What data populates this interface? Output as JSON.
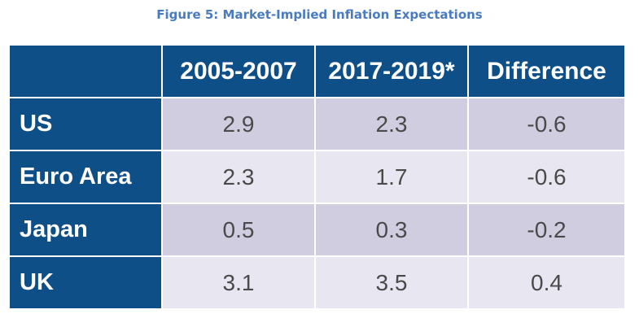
{
  "figure": {
    "title": "Figure 5: Market-Implied Inflation Expectations"
  },
  "table": {
    "headers": [
      "",
      "2005-2007",
      "2017-2019*",
      "Difference"
    ],
    "rows": [
      {
        "label": "US",
        "cells": [
          "2.9",
          "2.3",
          "-0.6"
        ]
      },
      {
        "label": "Euro Area",
        "cells": [
          "2.3",
          "1.7",
          "-0.6"
        ]
      },
      {
        "label": "Japan",
        "cells": [
          "0.5",
          "0.3",
          "-0.2"
        ]
      },
      {
        "label": "UK",
        "cells": [
          "3.1",
          "3.5",
          "0.4"
        ]
      }
    ]
  },
  "colors": {
    "header_bg": "#0f4f88",
    "title_text": "#4a7bbf",
    "row_odd_bg": "#d0cde0",
    "row_even_bg": "#e8e7f1"
  }
}
